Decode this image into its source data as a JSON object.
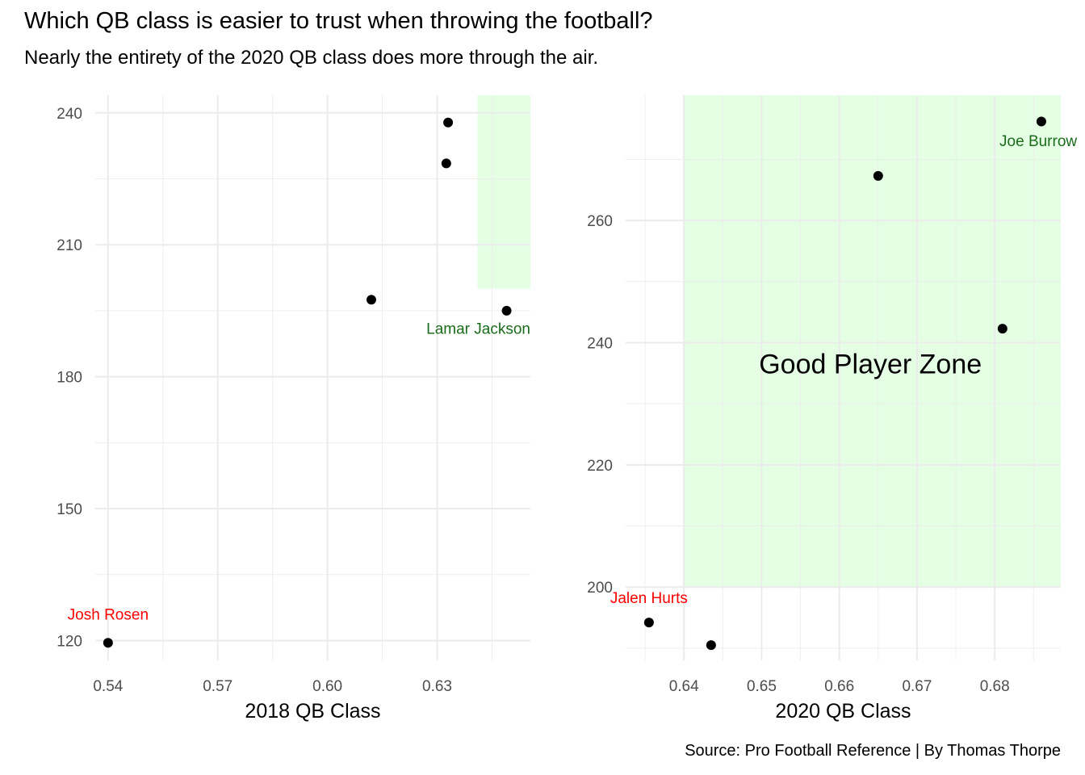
{
  "title": "Which QB class is easier to trust when throwing the football?",
  "subtitle": "Nearly the entirety of the 2020 QB class does more through the air.",
  "caption": "Source: Pro Football Reference | By Thomas Thorpe",
  "colors": {
    "zone_fill": "#e5ffe5",
    "point": "#000000",
    "good_label": "#1a6b1a",
    "bad_label": "#ff0000",
    "grid": "#ebebeb"
  },
  "chart_data": [
    {
      "type": "scatter",
      "xlabel": "2018 QB Class",
      "ylabel": "",
      "xlim": [
        0.5365,
        0.6555
      ],
      "ylim": [
        115.5,
        244
      ],
      "xticks": [
        0.54,
        0.57,
        0.6,
        0.63
      ],
      "xtick_labels": [
        "0.54",
        "0.57",
        "0.60",
        "0.63"
      ],
      "yticks": [
        120,
        150,
        180,
        210,
        240
      ],
      "ytick_labels": [
        "120",
        "150",
        "180",
        "210",
        "240"
      ],
      "points": [
        {
          "x": 0.54,
          "y": 119.5
        },
        {
          "x": 0.612,
          "y": 197.5
        },
        {
          "x": 0.6325,
          "y": 228.5
        },
        {
          "x": 0.633,
          "y": 237.8
        },
        {
          "x": 0.649,
          "y": 195
        }
      ],
      "zone": {
        "x": [
          0.641,
          0.6555
        ],
        "y": [
          200,
          244
        ]
      },
      "annotations": [
        {
          "text": "Josh Rosen",
          "x": 0.54,
          "y": 124.8,
          "anchor": "middle",
          "tone": "bad"
        },
        {
          "text": "Lamar Jackson",
          "x": 0.6555,
          "y": 189.8,
          "anchor": "end",
          "tone": "good"
        }
      ],
      "grid": true
    },
    {
      "type": "scatter",
      "xlabel": "2020 QB Class",
      "ylabel": "",
      "xlim": [
        0.6325,
        0.6885
      ],
      "ylim": [
        188,
        280.5
      ],
      "xticks": [
        0.64,
        0.65,
        0.66,
        0.67,
        0.68
      ],
      "xtick_labels": [
        "0.64",
        "0.65",
        "0.66",
        "0.67",
        "0.68"
      ],
      "yticks": [
        200,
        220,
        240,
        260
      ],
      "ytick_labels": [
        "200",
        "220",
        "240",
        "260"
      ],
      "points": [
        {
          "x": 0.6355,
          "y": 194.2
        },
        {
          "x": 0.6435,
          "y": 190.5
        },
        {
          "x": 0.665,
          "y": 267.3
        },
        {
          "x": 0.681,
          "y": 242.3
        },
        {
          "x": 0.686,
          "y": 276.2
        }
      ],
      "zone": {
        "x": [
          0.64,
          0.6885
        ],
        "y": [
          200,
          280.5
        ]
      },
      "zone_label": "Good Player Zone",
      "zone_label_pos": {
        "x": 0.664,
        "y": 235
      },
      "annotations": [
        {
          "text": "Jalen Hurts",
          "x": 0.6355,
          "y": 197.4,
          "anchor": "middle",
          "tone": "bad"
        },
        {
          "text": "Joe Burrow",
          "x": 0.6856,
          "y": 272.2,
          "anchor": "middle",
          "tone": "good"
        }
      ],
      "grid": true
    }
  ]
}
